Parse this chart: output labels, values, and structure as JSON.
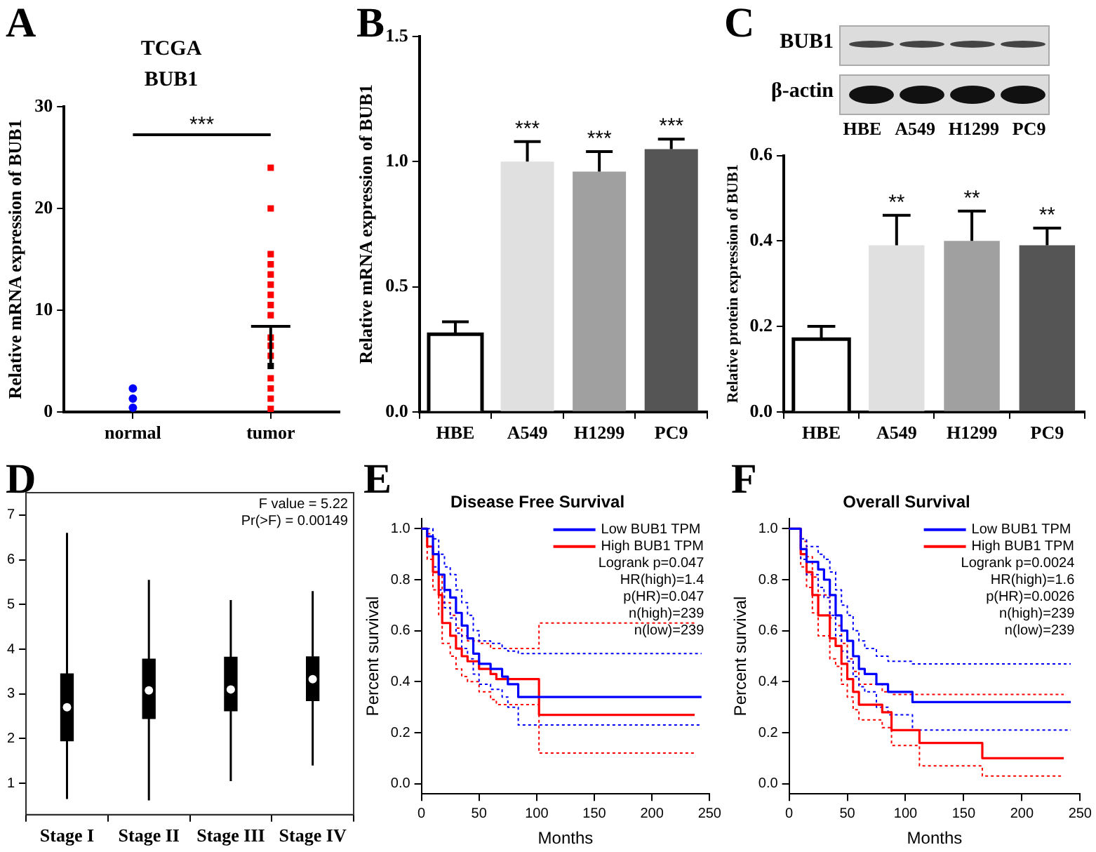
{
  "chart_data": [
    {
      "type": "scatter",
      "title": "TCGA",
      "subtitle": "BUB1",
      "ylabel": "Relative mRNA expression of BUB1",
      "categories": [
        "normal",
        "tumor"
      ],
      "ylim": [
        0,
        30
      ],
      "yticks": [
        0,
        10,
        20,
        30
      ],
      "annotations": [
        "A",
        "***"
      ],
      "series": [
        {
          "color": "#0000ff",
          "marker": "circle",
          "x": [
            "normal",
            "normal",
            "normal"
          ],
          "values": [
            0.4,
            1.3,
            2.3
          ]
        },
        {
          "color": "#ff0000",
          "marker": "square",
          "x": [
            "tumor",
            "tumor",
            "tumor",
            "tumor",
            "tumor",
            "tumor",
            "tumor",
            "tumor",
            "tumor",
            "tumor",
            "tumor",
            "tumor",
            "tumor",
            "tumor",
            "tumor",
            "tumor"
          ],
          "values": [
            0.3,
            1.3,
            2.3,
            3.3,
            5.5,
            6.5,
            7.3,
            9.5,
            10.5,
            11.5,
            12.5,
            13.5,
            14.5,
            15.5,
            20,
            24
          ]
        },
        {
          "color": "#000000",
          "marker": "square",
          "values": [
            null,
            4.5
          ],
          "errors": [
            null,
            [
              4.5,
              8.4
            ]
          ]
        }
      ]
    },
    {
      "type": "bar",
      "ylabel": "Relative mRNA expression of BUB1",
      "categories": [
        "HBE",
        "A549",
        "H1299",
        "PC9"
      ],
      "values": [
        0.31,
        1.0,
        0.96,
        1.05
      ],
      "colors": [
        "#ffffff",
        "#e0e0e0",
        "#a0a0a0",
        "#555555"
      ],
      "errors": [
        [
          0.31,
          0.36
        ],
        [
          1.0,
          1.08
        ],
        [
          0.96,
          1.04
        ],
        [
          1.05,
          1.09
        ]
      ],
      "value_labels": [
        null,
        "***",
        "***",
        "***"
      ],
      "ylim": [
        0,
        1.5
      ],
      "yticks": [
        {
          "value": 0,
          "label": "0.0"
        },
        {
          "value": 0.5,
          "label": "0.5"
        },
        {
          "value": 1,
          "label": "1.0"
        },
        {
          "value": 1.5,
          "label": "1.5"
        }
      ],
      "annotations": [
        "B"
      ]
    },
    {
      "type": "bar",
      "ylabel": "Relative protein expression of BUB1",
      "categories": [
        "HBE",
        "A549",
        "H1299",
        "PC9"
      ],
      "values": [
        0.17,
        0.39,
        0.4,
        0.39
      ],
      "colors": [
        "#ffffff",
        "#e0e0e0",
        "#a0a0a0",
        "#555555"
      ],
      "errors": [
        [
          0.17,
          0.2
        ],
        [
          0.39,
          0.46
        ],
        [
          0.4,
          0.47
        ],
        [
          0.39,
          0.43
        ]
      ],
      "value_labels": [
        null,
        "**",
        "**",
        "**"
      ],
      "ylim": [
        0,
        0.6
      ],
      "yticks": [
        {
          "value": 0,
          "label": "0.0"
        },
        {
          "value": 0.2,
          "label": "0.2"
        },
        {
          "value": 0.4,
          "label": "0.4"
        },
        {
          "value": 0.6,
          "label": "0.6"
        }
      ],
      "annotations": [
        "C",
        "BUB1",
        "β-actin"
      ]
    },
    {
      "type": "box",
      "categories": [
        "Stage I",
        "Stage II",
        "Stage III",
        "Stage IV"
      ],
      "color": "#000000",
      "boxes": [
        {
          "low": 0.65,
          "q1": 1.95,
          "median": 2.7,
          "q3": 3.45,
          "high": 6.6
        },
        {
          "low": 0.62,
          "q1": 2.45,
          "median": 3.08,
          "q3": 3.78,
          "high": 5.55
        },
        {
          "low": 1.05,
          "q1": 2.62,
          "median": 3.1,
          "q3": 3.82,
          "high": 5.1
        },
        {
          "low": 1.4,
          "q1": 2.85,
          "median": 3.33,
          "q3": 3.83,
          "high": 5.3
        }
      ],
      "ylim": [
        0.3,
        7.5
      ],
      "yticks": [
        1,
        2,
        3,
        4,
        5,
        6,
        7
      ],
      "annotations": [
        "D",
        "F value = 5.22",
        "Pr(>F) = 0.00149"
      ]
    },
    {
      "type": "step",
      "title": "Disease Free Survival",
      "xlabel": "Months",
      "ylabel": "Percent survival",
      "legend": "top right",
      "xlim": [
        0,
        250
      ],
      "xticks": [
        0,
        50,
        100,
        150,
        200,
        250
      ],
      "ylim": [
        -0.04,
        1.04
      ],
      "yticks": [
        {
          "value": 0,
          "label": "0.0"
        },
        {
          "value": 0.2,
          "label": "0.2"
        },
        {
          "value": 0.4,
          "label": "0.4"
        },
        {
          "value": 0.6,
          "label": "0.6"
        },
        {
          "value": 0.8,
          "label": "0.8"
        },
        {
          "value": 1,
          "label": "1.0"
        }
      ],
      "annotations": [
        "E",
        "Logrank p=0.047",
        "HR(high)=1.4",
        "p(HR)=0.047",
        "n(high)=239",
        "n(low)=239"
      ],
      "series": [
        {
          "name": "Low BUB1 TPM",
          "color": "#0000ff",
          "x": [
            0,
            5,
            10,
            15,
            20,
            25,
            30,
            35,
            40,
            45,
            50,
            60,
            70,
            75,
            84,
            243
          ],
          "values": [
            1,
            0.97,
            0.9,
            0.82,
            0.76,
            0.73,
            0.67,
            0.62,
            0.57,
            0.51,
            0.47,
            0.45,
            0.42,
            0.39,
            0.34,
            0.34
          ]
        },
        {
          "name": "High BUB1 TPM",
          "color": "#ff0000",
          "x": [
            0,
            5,
            10,
            15,
            18,
            25,
            30,
            35,
            40,
            50,
            60,
            65,
            102,
            237
          ],
          "values": [
            1,
            0.93,
            0.83,
            0.74,
            0.63,
            0.58,
            0.53,
            0.5,
            0.48,
            0.45,
            0.43,
            0.41,
            0.27,
            0.27
          ]
        },
        {
          "color": "#0000ff",
          "line_style": "dotted",
          "x": [
            0,
            5,
            10,
            15,
            20,
            25,
            30,
            35,
            40,
            45,
            50,
            60,
            70,
            75,
            84,
            243
          ],
          "values": [
            1,
            1,
            0.96,
            0.9,
            0.85,
            0.82,
            0.76,
            0.71,
            0.66,
            0.6,
            0.56,
            0.55,
            0.53,
            0.52,
            0.51,
            0.51
          ]
        },
        {
          "color": "#0000ff",
          "line_style": "dotted",
          "x": [
            0,
            5,
            10,
            15,
            20,
            25,
            30,
            35,
            40,
            45,
            50,
            60,
            70,
            75,
            84,
            243
          ],
          "values": [
            1,
            0.93,
            0.85,
            0.76,
            0.69,
            0.65,
            0.59,
            0.53,
            0.49,
            0.43,
            0.39,
            0.37,
            0.34,
            0.3,
            0.23,
            0.23
          ]
        },
        {
          "color": "#ff0000",
          "line_style": "dotted",
          "x": [
            0,
            5,
            10,
            15,
            18,
            25,
            30,
            35,
            40,
            50,
            60,
            65,
            102,
            237
          ],
          "values": [
            1,
            0.98,
            0.9,
            0.82,
            0.71,
            0.66,
            0.61,
            0.58,
            0.56,
            0.55,
            0.53,
            0.53,
            0.63,
            0.63
          ]
        },
        {
          "color": "#ff0000",
          "line_style": "dotted",
          "x": [
            0,
            5,
            10,
            15,
            18,
            25,
            30,
            35,
            40,
            50,
            60,
            65,
            102,
            237
          ],
          "values": [
            1,
            0.88,
            0.76,
            0.66,
            0.55,
            0.5,
            0.45,
            0.42,
            0.4,
            0.36,
            0.33,
            0.31,
            0.12,
            0.12
          ]
        }
      ]
    },
    {
      "type": "step",
      "title": "Overall Survival",
      "xlabel": "Months",
      "ylabel": "Percent survival",
      "legend": "top right",
      "xlim": [
        0,
        250
      ],
      "xticks": [
        0,
        50,
        100,
        150,
        200,
        250
      ],
      "ylim": [
        -0.04,
        1.04
      ],
      "yticks": [
        {
          "value": 0,
          "label": "0.0"
        },
        {
          "value": 0.2,
          "label": "0.2"
        },
        {
          "value": 0.4,
          "label": "0.4"
        },
        {
          "value": 0.6,
          "label": "0.6"
        },
        {
          "value": 0.8,
          "label": "0.8"
        },
        {
          "value": 1,
          "label": "1.0"
        }
      ],
      "annotations": [
        "F",
        "Logrank p=0.0024",
        "HR(high)=1.6",
        "p(HR)=0.0026",
        "n(high)=239",
        "n(low)=239"
      ],
      "series": [
        {
          "name": "Low BUB1 TPM",
          "color": "#0000ff",
          "x": [
            0,
            10,
            15,
            25,
            30,
            35,
            40,
            45,
            50,
            55,
            60,
            65,
            75,
            85,
            106,
            242
          ],
          "values": [
            1,
            0.92,
            0.87,
            0.84,
            0.8,
            0.74,
            0.66,
            0.6,
            0.56,
            0.5,
            0.45,
            0.43,
            0.39,
            0.36,
            0.32,
            0.32
          ]
        },
        {
          "name": "High BUB1 TPM",
          "color": "#ff0000",
          "x": [
            0,
            10,
            15,
            20,
            25,
            35,
            40,
            45,
            50,
            55,
            60,
            80,
            88,
            112,
            166,
            236
          ],
          "values": [
            1,
            0.9,
            0.83,
            0.74,
            0.66,
            0.57,
            0.54,
            0.47,
            0.41,
            0.36,
            0.31,
            0.28,
            0.21,
            0.16,
            0.1,
            0.1
          ]
        },
        {
          "color": "#0000ff",
          "line_style": "dotted",
          "x": [
            0,
            10,
            15,
            25,
            30,
            35,
            40,
            45,
            50,
            55,
            60,
            65,
            75,
            85,
            106,
            242
          ],
          "values": [
            1,
            0.96,
            0.93,
            0.9,
            0.88,
            0.83,
            0.76,
            0.7,
            0.66,
            0.6,
            0.56,
            0.53,
            0.5,
            0.48,
            0.47,
            0.47
          ]
        },
        {
          "color": "#0000ff",
          "line_style": "dotted",
          "x": [
            0,
            10,
            15,
            25,
            30,
            35,
            40,
            45,
            50,
            55,
            60,
            65,
            75,
            85,
            106,
            242
          ],
          "values": [
            1,
            0.88,
            0.82,
            0.77,
            0.73,
            0.66,
            0.58,
            0.52,
            0.48,
            0.42,
            0.38,
            0.36,
            0.3,
            0.27,
            0.21,
            0.21
          ]
        },
        {
          "color": "#ff0000",
          "line_style": "dotted",
          "x": [
            0,
            10,
            15,
            20,
            25,
            35,
            40,
            45,
            50,
            55,
            60,
            80,
            88,
            112,
            166,
            236
          ],
          "values": [
            1,
            0.95,
            0.89,
            0.81,
            0.74,
            0.65,
            0.62,
            0.55,
            0.49,
            0.44,
            0.39,
            0.36,
            0.35,
            0.35,
            0.35,
            0.35
          ]
        },
        {
          "color": "#ff0000",
          "line_style": "dotted",
          "x": [
            0,
            10,
            15,
            20,
            25,
            35,
            40,
            45,
            50,
            55,
            60,
            80,
            88,
            112,
            166,
            236
          ],
          "values": [
            1,
            0.85,
            0.77,
            0.67,
            0.58,
            0.49,
            0.46,
            0.39,
            0.34,
            0.29,
            0.25,
            0.22,
            0.15,
            0.07,
            0.03,
            0.03
          ]
        }
      ]
    }
  ]
}
